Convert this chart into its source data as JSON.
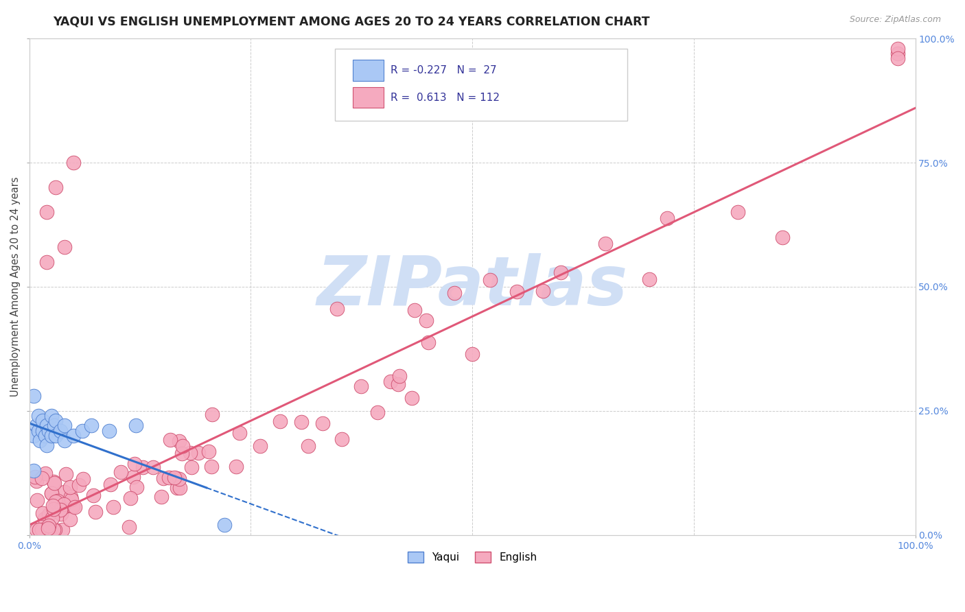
{
  "title": "YAQUI VS ENGLISH UNEMPLOYMENT AMONG AGES 20 TO 24 YEARS CORRELATION CHART",
  "source": "Source: ZipAtlas.com",
  "ylabel": "Unemployment Among Ages 20 to 24 years",
  "xlim": [
    0,
    1
  ],
  "ylim": [
    0,
    1
  ],
  "xtick_positions": [
    0.0,
    1.0
  ],
  "xticklabels": [
    "0.0%",
    "100.0%"
  ],
  "ytick_positions": [
    0.0,
    0.25,
    0.5,
    0.75,
    1.0
  ],
  "right_yticklabels": [
    "0.0%",
    "25.0%",
    "50.0%",
    "75.0%",
    "100.0%"
  ],
  "yaqui_color": "#aac8f5",
  "english_color": "#f5aabf",
  "yaqui_edge": "#5080d0",
  "english_edge": "#d05070",
  "trend_yaqui_color": "#3070cc",
  "trend_english_color": "#e05878",
  "background_color": "#ffffff",
  "grid_color": "#cccccc",
  "watermark_color": "#d0dff5",
  "legend_box_color": "#f5f5f5",
  "legend_border_color": "#cccccc",
  "tick_label_color": "#5588dd",
  "title_color": "#222222",
  "source_color": "#999999",
  "ylabel_color": "#444444",
  "legend_text_color": "#333399"
}
